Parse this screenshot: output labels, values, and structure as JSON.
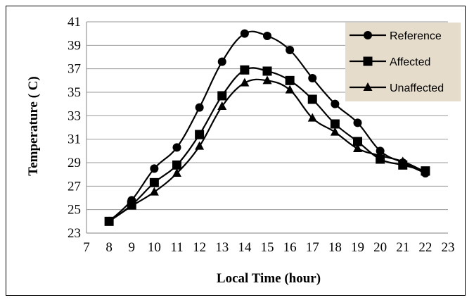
{
  "chart_data": {
    "type": "line",
    "title": "",
    "xlabel": "Local Time (hour)",
    "ylabel": "Temperature ( C)",
    "xlim": [
      7,
      23
    ],
    "ylim": [
      23,
      41
    ],
    "xticks": [
      7,
      8,
      9,
      10,
      11,
      12,
      13,
      14,
      15,
      16,
      17,
      18,
      19,
      20,
      21,
      22,
      23
    ],
    "yticks": [
      23,
      25,
      27,
      29,
      31,
      33,
      35,
      37,
      39,
      41
    ],
    "grid": "horizontal",
    "legend_position": "top-right",
    "x": [
      8,
      9,
      10,
      11,
      12,
      13,
      14,
      15,
      16,
      17,
      18,
      19,
      20,
      21,
      22
    ],
    "series": [
      {
        "name": "Reference",
        "marker": "circle",
        "values": [
          24.0,
          25.8,
          28.5,
          30.3,
          33.7,
          37.6,
          40.0,
          39.8,
          38.6,
          36.2,
          34.0,
          32.4,
          30.0,
          29.0,
          28.1
        ]
      },
      {
        "name": "Affected",
        "marker": "square",
        "values": [
          24.0,
          25.4,
          27.3,
          28.8,
          31.4,
          34.7,
          36.9,
          36.8,
          36.0,
          34.4,
          32.3,
          30.8,
          29.3,
          28.8,
          28.3
        ]
      },
      {
        "name": "Unaffected",
        "marker": "triangle",
        "values": [
          24.0,
          25.3,
          26.5,
          28.1,
          30.4,
          33.8,
          35.8,
          36.0,
          35.2,
          32.8,
          31.6,
          30.2,
          29.6,
          29.1,
          28.2
        ]
      }
    ],
    "colors": {
      "line": "#000000",
      "grid": "#9a9a9a",
      "legend_background": "#e6dccb"
    }
  }
}
